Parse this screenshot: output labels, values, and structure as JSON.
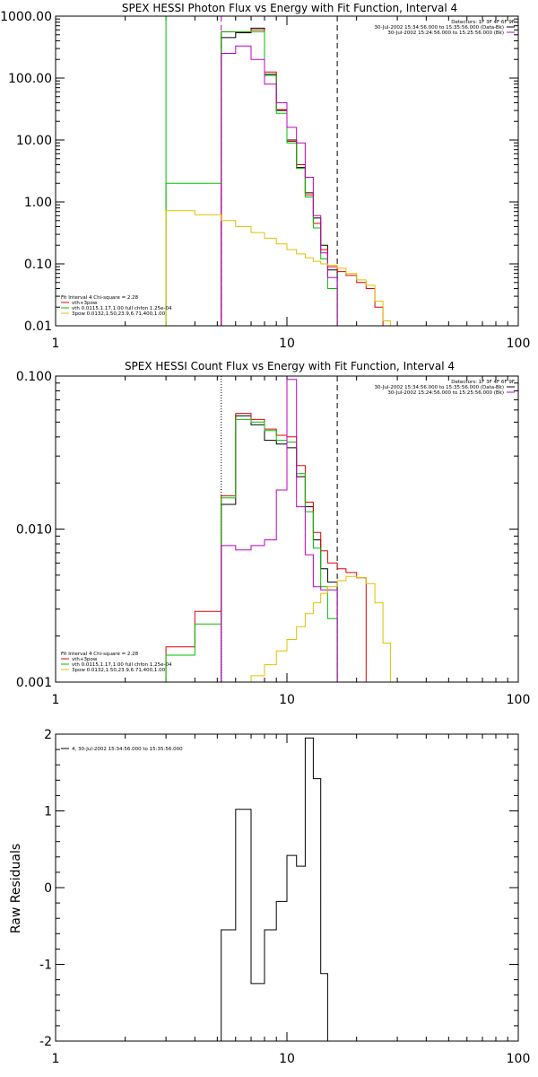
{
  "chart_data": [
    {
      "type": "line",
      "title": "SPEX HESSI Photon Flux vs Energy with Fit Function, Interval 4",
      "ylabel": "",
      "xscale": "log",
      "yscale": "log",
      "xlim": [
        1,
        100
      ],
      "ylim": [
        0.01,
        1000
      ],
      "x_ticks": [
        "1",
        "10",
        "100"
      ],
      "y_ticks": [
        "0.01",
        "0.10",
        "1.00",
        "10.00",
        "100.00",
        "1000.00"
      ],
      "vlines": [
        {
          "x": 3,
          "color": "#00c000",
          "style": "solid"
        },
        {
          "x": 5.2,
          "color": "#c000c0",
          "style": "dashed"
        },
        {
          "x": 16.5,
          "color": "#000000",
          "style": "dashed"
        }
      ],
      "legend_right": [
        {
          "text": "Detectors: 1F 3F 4F 6F 9F",
          "color": ""
        },
        {
          "text": "30-Jul-2002 15:34:56.000 to 15:35:56.000 (Data-Bk)",
          "color": "#000000"
        },
        {
          "text": "30-Jul-2002 15:24:56.000 to 15:25:56.000 (Bk)",
          "color": "#c000c0"
        }
      ],
      "legend_left": [
        {
          "text": "Fit Interval 4   Chi-square = 2.28",
          "color": ""
        },
        {
          "text": "vth+3pow",
          "color": "#e00000"
        },
        {
          "text": "vth 0.0115,1.17,1.00  full chfon 1.25e-04",
          "color": "#00c000"
        },
        {
          "text": "3pow 0.0132,1.50,23.9,6.71,400,1.00",
          "color": "#e0c000"
        }
      ],
      "series": [
        {
          "color": "#000000",
          "edges": [
            5.2,
            6,
            7,
            8,
            9,
            10,
            11,
            12,
            13,
            14,
            15,
            16.5
          ],
          "values": [
            450,
            540,
            640,
            115,
            30,
            10,
            3.6,
            1.4,
            0.55,
            0.2,
            0.08
          ]
        },
        {
          "color": "#e00000",
          "edges": [
            5.2,
            6,
            7,
            8,
            9,
            10,
            11,
            12,
            13,
            14,
            15,
            16.5,
            18,
            20,
            22,
            24,
            26,
            28
          ],
          "values": [
            560,
            560,
            600,
            125,
            31,
            9.5,
            4.0,
            1.3,
            0.45,
            0.17,
            0.09,
            0.075,
            0.065,
            0.05,
            0.04,
            0.02,
            0.01
          ]
        },
        {
          "color": "#00c000",
          "edges": [
            3,
            4,
            5.2,
            6,
            7,
            8,
            9,
            10,
            11,
            12,
            13,
            14,
            15,
            16.5
          ],
          "values": [
            2,
            2,
            560,
            560,
            560,
            110,
            27,
            9.0,
            3.5,
            1.2,
            0.38,
            0.12,
            0.04
          ]
        },
        {
          "color": "#c000c0",
          "edges": [
            5.2,
            6,
            7,
            8,
            9,
            10,
            11,
            12,
            13,
            14,
            15,
            16.5
          ],
          "values": [
            250,
            330,
            200,
            80,
            40,
            16,
            9,
            2.5,
            0.6,
            0.15,
            0.06
          ]
        },
        {
          "color": "#e0c000",
          "edges": [
            3,
            4,
            5.2,
            6,
            7,
            8,
            9,
            10,
            11,
            12,
            13,
            14,
            15,
            16.5,
            18,
            20,
            22,
            24,
            26,
            28
          ],
          "values": [
            0.72,
            0.62,
            0.5,
            0.4,
            0.32,
            0.26,
            0.21,
            0.17,
            0.145,
            0.125,
            0.11,
            0.1,
            0.095,
            0.085,
            0.07,
            0.055,
            0.045,
            0.025,
            0.012
          ]
        }
      ]
    },
    {
      "type": "line",
      "title": "SPEX HESSI Count Flux vs Energy with Fit Function, Interval 4",
      "ylabel": "",
      "xscale": "log",
      "yscale": "log",
      "xlim": [
        1,
        100
      ],
      "ylim": [
        0.001,
        0.1
      ],
      "x_ticks": [
        "1",
        "10",
        "100"
      ],
      "y_ticks": [
        "0.001",
        "0.010",
        "0.100"
      ],
      "vlines": [
        {
          "x": 5.2,
          "color": "#000000",
          "style": "dotted"
        },
        {
          "x": 16.5,
          "color": "#000000",
          "style": "dashed"
        }
      ],
      "legend_right": [
        {
          "text": "Detectors: 1F 3F 4F 6F 9F",
          "color": ""
        },
        {
          "text": "30-Jul-2002 15:34:56.000 to 15:35:56.000 (Data-Bk)",
          "color": "#000000"
        },
        {
          "text": "30-Jul-2002 15:24:56.000 to 15:25:56.000 (Bk)",
          "color": "#c000c0"
        }
      ],
      "legend_left": [
        {
          "text": "Fit Interval 4   Chi-square = 2.28",
          "color": ""
        },
        {
          "text": "vth+3pow",
          "color": "#e00000"
        },
        {
          "text": "vth 0.0115,1.17,1.00  full chfon 1.25e-04",
          "color": "#00c000"
        },
        {
          "text": "3pow 0.0132,1.50,23.9,6.71,400,1.00",
          "color": "#e0c000"
        }
      ],
      "series": [
        {
          "color": "#000000",
          "edges": [
            5.2,
            6,
            7,
            8,
            9,
            10,
            11,
            12,
            13,
            14,
            15,
            16.5
          ],
          "values": [
            0.0145,
            0.055,
            0.048,
            0.038,
            0.036,
            0.034,
            0.022,
            0.014,
            0.0085,
            0.0055,
            0.0045
          ]
        },
        {
          "color": "#e00000",
          "edges": [
            3,
            4,
            5.2,
            6,
            7,
            8,
            9,
            10,
            11,
            12,
            13,
            14,
            15,
            16.5,
            18,
            20,
            22
          ],
          "values": [
            0.0017,
            0.0029,
            0.0165,
            0.057,
            0.052,
            0.045,
            0.041,
            0.04,
            0.026,
            0.015,
            0.0095,
            0.0072,
            0.006,
            0.0055,
            0.0052,
            0.0048
          ]
        },
        {
          "color": "#00c000",
          "edges": [
            3,
            4,
            5.2,
            6,
            7,
            8,
            9,
            10,
            11,
            12,
            13,
            14,
            15,
            16.5
          ],
          "values": [
            0.0015,
            0.0024,
            0.016,
            0.052,
            0.05,
            0.044,
            0.038,
            0.037,
            0.023,
            0.013,
            0.0075,
            0.0042,
            0.0026
          ]
        },
        {
          "color": "#c000c0",
          "edges": [
            5.2,
            6,
            7,
            8,
            9,
            10,
            11,
            12,
            13,
            14,
            15,
            16.5
          ],
          "values": [
            0.0078,
            0.0073,
            0.0078,
            0.0085,
            0.018,
            0.095,
            0.014,
            0.0068,
            0.0042,
            0.004,
            0.004
          ]
        },
        {
          "color": "#e0c000",
          "edges": [
            7,
            8,
            9,
            10,
            11,
            12,
            13,
            14,
            15,
            16.5,
            18,
            20,
            22,
            24,
            26,
            28
          ],
          "values": [
            0.0011,
            0.0013,
            0.0016,
            0.0019,
            0.0023,
            0.0028,
            0.0033,
            0.0038,
            0.0042,
            0.0046,
            0.0049,
            0.0048,
            0.0044,
            0.0033,
            0.0018
          ]
        }
      ]
    },
    {
      "type": "line",
      "title": "",
      "ylabel": "Raw Residuals",
      "xscale": "log",
      "yscale": "linear",
      "xlim": [
        1,
        100
      ],
      "ylim": [
        -2,
        2
      ],
      "x_ticks": [
        "1",
        "10",
        "100"
      ],
      "y_ticks": [
        "-2",
        "-1",
        "0",
        "1",
        "2"
      ],
      "vlines": [],
      "legend_right": [],
      "legend_left": [
        {
          "text": "4, 30-Jul-2002 15:34:56.000 to 15:35:56.000",
          "color": "#000000"
        }
      ],
      "series": [
        {
          "color": "#000000",
          "edges": [
            5.2,
            6,
            7,
            8,
            9,
            10,
            11,
            12,
            13,
            14,
            15,
            16.5
          ],
          "values": [
            -0.55,
            1.02,
            -1.25,
            -0.55,
            -0.18,
            0.42,
            0.28,
            1.95,
            1.42,
            -1.12,
            -2.0
          ]
        }
      ]
    }
  ]
}
